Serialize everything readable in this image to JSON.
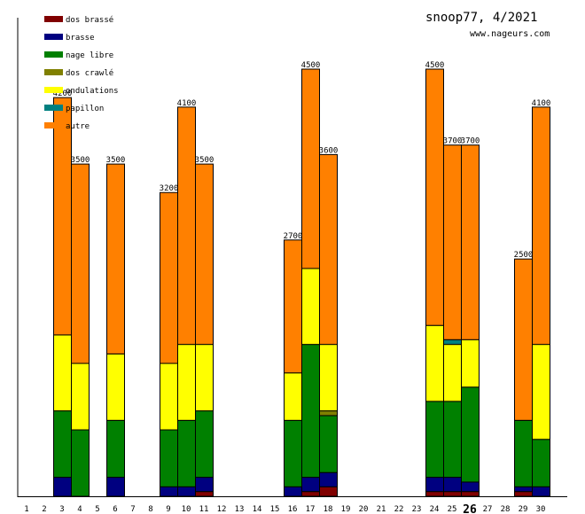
{
  "header": {
    "title": "snoop77, 4/2021",
    "url": "www.nageurs.com"
  },
  "chart_data": {
    "type": "bar",
    "stacked": true,
    "title": "snoop77, 4/2021",
    "xlabel": "",
    "ylabel": "",
    "ylim": [
      0,
      4800
    ],
    "highlight_day": "26",
    "categories": [
      "1",
      "2",
      "3",
      "4",
      "5",
      "6",
      "7",
      "8",
      "9",
      "10",
      "11",
      "12",
      "13",
      "14",
      "15",
      "16",
      "17",
      "18",
      "19",
      "20",
      "21",
      "22",
      "23",
      "24",
      "25",
      "26",
      "27",
      "28",
      "29",
      "30"
    ],
    "totals": [
      null,
      null,
      4200,
      3500,
      null,
      3500,
      null,
      null,
      3200,
      4100,
      3500,
      null,
      null,
      null,
      null,
      2700,
      4500,
      3600,
      null,
      null,
      null,
      null,
      null,
      4500,
      3700,
      3700,
      null,
      null,
      2500,
      4100
    ],
    "total_labels": [
      "",
      "",
      "4200",
      "3500",
      "",
      "3500",
      "",
      "",
      "3200",
      "4100",
      "3500",
      "",
      "",
      "",
      "",
      "2700",
      "4500",
      "3600",
      "",
      "",
      "",
      "",
      "",
      "4500",
      "3700",
      "3700",
      "",
      "",
      "2500",
      "4100"
    ],
    "legend_position": "top-left",
    "series": [
      {
        "name": "dos brassé",
        "color": "#800000",
        "values": [
          0,
          0,
          0,
          0,
          0,
          0,
          0,
          0,
          0,
          0,
          50,
          0,
          0,
          0,
          0,
          0,
          50,
          100,
          0,
          0,
          0,
          0,
          0,
          50,
          50,
          50,
          0,
          0,
          50,
          0
        ]
      },
      {
        "name": "brasse",
        "color": "#000080",
        "values": [
          0,
          0,
          200,
          0,
          0,
          200,
          0,
          0,
          100,
          100,
          150,
          0,
          0,
          0,
          0,
          100,
          150,
          150,
          0,
          0,
          0,
          0,
          0,
          150,
          150,
          100,
          0,
          0,
          50,
          100
        ]
      },
      {
        "name": "nage libre",
        "color": "#008000",
        "values": [
          0,
          0,
          700,
          700,
          0,
          600,
          0,
          0,
          600,
          700,
          700,
          0,
          0,
          0,
          0,
          700,
          1400,
          600,
          0,
          0,
          0,
          0,
          0,
          800,
          800,
          1000,
          0,
          0,
          700,
          500
        ]
      },
      {
        "name": "dos crawlé",
        "color": "#808000",
        "values": [
          0,
          0,
          0,
          0,
          0,
          0,
          0,
          0,
          0,
          0,
          0,
          0,
          0,
          0,
          0,
          0,
          0,
          50,
          0,
          0,
          0,
          0,
          0,
          0,
          0,
          0,
          0,
          0,
          0,
          0
        ]
      },
      {
        "name": "ondulations",
        "color": "#ffff00",
        "values": [
          0,
          0,
          800,
          700,
          0,
          700,
          0,
          0,
          700,
          800,
          700,
          0,
          0,
          0,
          0,
          500,
          800,
          700,
          0,
          0,
          0,
          0,
          0,
          800,
          600,
          500,
          0,
          0,
          0,
          1000
        ]
      },
      {
        "name": "papillon",
        "color": "#008080",
        "values": [
          0,
          0,
          0,
          0,
          0,
          0,
          0,
          0,
          0,
          0,
          0,
          0,
          0,
          0,
          0,
          0,
          0,
          0,
          0,
          0,
          0,
          0,
          0,
          0,
          50,
          0,
          0,
          0,
          0,
          0
        ]
      },
      {
        "name": "autre",
        "color": "#ff8000",
        "values": [
          0,
          0,
          2500,
          2100,
          0,
          2000,
          0,
          0,
          1800,
          2500,
          1900,
          0,
          0,
          0,
          0,
          1400,
          2100,
          2000,
          0,
          0,
          0,
          0,
          0,
          2700,
          2050,
          2050,
          0,
          0,
          1700,
          2500
        ]
      }
    ]
  }
}
